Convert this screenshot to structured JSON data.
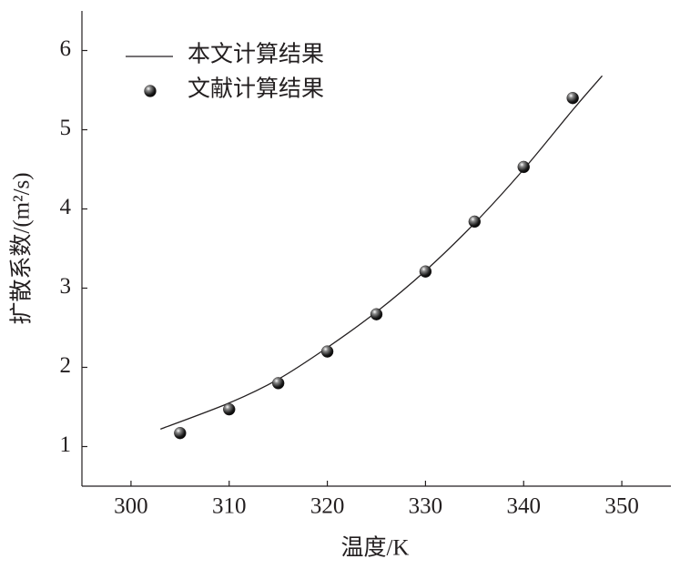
{
  "chart_data": {
    "type": "line",
    "x_label": "温度/K",
    "y_label": "扩散系数/(m²/s)",
    "xlim": [
      295,
      355
    ],
    "xticks": [
      300,
      310,
      320,
      330,
      340,
      350
    ],
    "ylim": [
      0.5,
      6.5
    ],
    "yticks": [
      1,
      2,
      3,
      4,
      5,
      6
    ],
    "legend": "upper left",
    "series": [
      {
        "name": "本文计算结果",
        "type": "line",
        "color": "#231f20",
        "x": [
          303,
          310,
          315,
          320,
          325,
          330,
          335,
          340,
          345,
          348
        ],
        "values": [
          1.22,
          1.55,
          1.85,
          2.25,
          2.7,
          3.22,
          3.82,
          4.5,
          5.25,
          5.68
        ]
      },
      {
        "name": "文献计算结果",
        "type": "scatter",
        "color": "#231f20",
        "x": [
          305,
          310,
          315,
          320,
          325,
          330,
          335,
          340,
          345
        ],
        "values": [
          1.17,
          1.47,
          1.8,
          2.2,
          2.67,
          3.21,
          3.84,
          4.53,
          5.4
        ]
      }
    ]
  }
}
